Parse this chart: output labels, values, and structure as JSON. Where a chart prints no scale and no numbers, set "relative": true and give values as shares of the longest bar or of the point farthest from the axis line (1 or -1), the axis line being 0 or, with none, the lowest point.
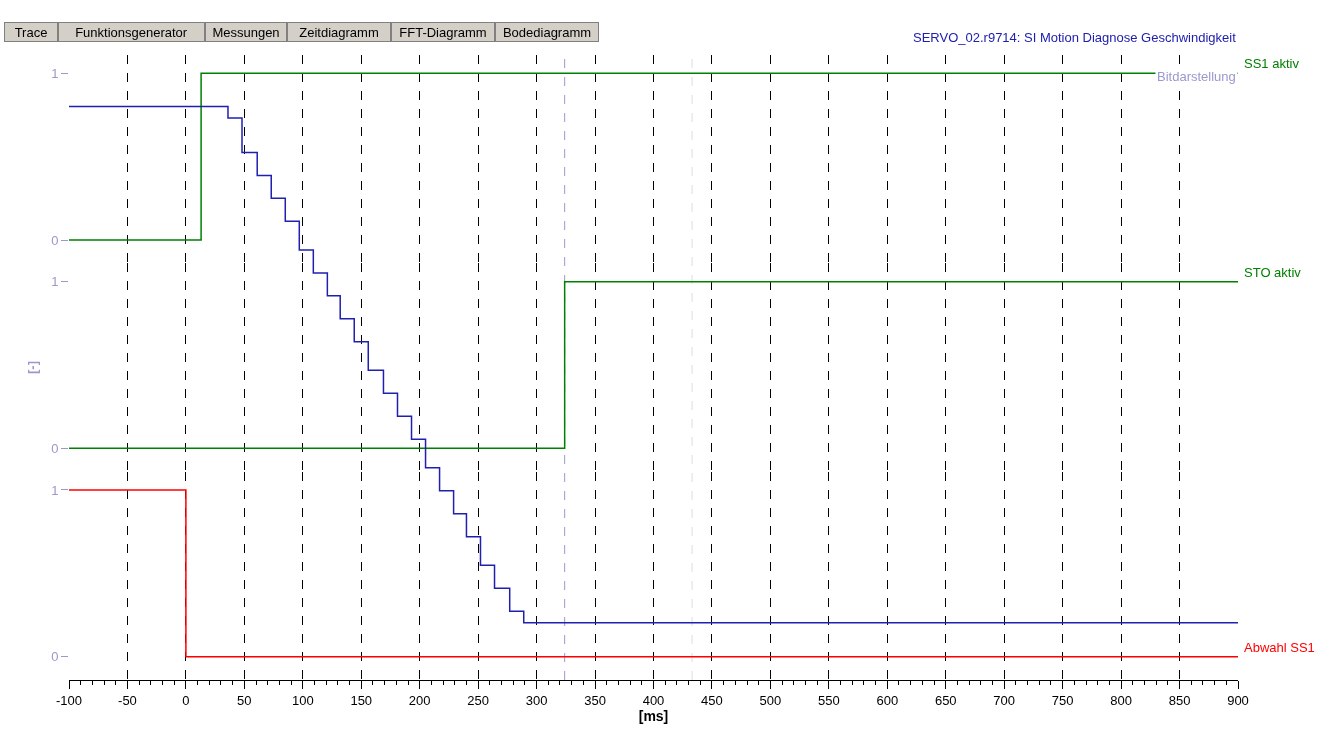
{
  "chart_data": [
    {
      "type": "step",
      "xlim": [
        -100,
        900
      ],
      "xticks": [
        -100,
        -50,
        0,
        50,
        100,
        150,
        200,
        250,
        300,
        350,
        400,
        450,
        500,
        550,
        600,
        650,
        700,
        750,
        800,
        850,
        900
      ],
      "ylim": [
        -0.14,
        1.11
      ],
      "yticks": [
        0,
        1
      ],
      "grid": "x",
      "tick_labels": "y",
      "line_style": "solid",
      "series": [
        {
          "name": "SS1 aktiv",
          "color": "#008000",
          "x": [
            -100,
            13,
            900
          ],
          "values": [
            0,
            1,
            1
          ]
        }
      ],
      "annotations": [
        "Trace",
        "Funktionsgenerator",
        "Messungen",
        "Zeitdiagramm",
        "FFT-Diagramm",
        "Bodediagramm"
      ]
    },
    {
      "type": "step",
      "ylabel": "[-]",
      "xlim": [
        -100,
        900
      ],
      "xticks": [
        -100,
        -50,
        0,
        50,
        100,
        150,
        200,
        250,
        300,
        350,
        400,
        450,
        500,
        550,
        600,
        650,
        700,
        750,
        800,
        850,
        900
      ],
      "ylim": [
        -0.14,
        1.11
      ],
      "yticks": [
        0,
        1
      ],
      "grid": "x",
      "tick_labels": "y",
      "line_style": "solid",
      "series": [
        {
          "name": "STO aktiv",
          "color": "#008000",
          "x": [
            -100,
            324,
            900
          ],
          "values": [
            0,
            1,
            1
          ]
        }
      ]
    },
    {
      "type": "step",
      "xlabel": "[ms]",
      "xlim": [
        -100,
        900
      ],
      "xticks": [
        -100,
        -50,
        0,
        50,
        100,
        150,
        200,
        250,
        300,
        350,
        400,
        450,
        500,
        550,
        600,
        650,
        700,
        750,
        800,
        850,
        900
      ],
      "ylim": [
        -0.14,
        1.11
      ],
      "yticks": [
        0,
        1
      ],
      "grid": "x",
      "line_style": "solid",
      "series": [
        {
          "name": "Abwahl SS1",
          "color": "#ff0000",
          "x": [
            -100,
            0,
            900
          ],
          "values": [
            1,
            0,
            0
          ]
        }
      ]
    },
    {
      "type": "step",
      "relative": true,
      "xlim": [
        -100,
        900
      ],
      "tick_labels": false,
      "line_style": "solid",
      "series": [
        {
          "name": "SERVO_02.r9714: SI Motion Diagnose Geschwindigkeit",
          "color": "#2020b0",
          "x": [
            -100,
            36,
            48,
            61,
            73,
            85,
            97,
            109,
            121,
            132,
            144,
            156,
            169,
            181,
            193,
            205,
            217,
            229,
            240,
            252,
            264,
            277,
            289,
            300,
            900
          ],
          "values": [
            1,
            0.98,
            0.92,
            0.88,
            0.84,
            0.8,
            0.75,
            0.71,
            0.67,
            0.63,
            0.59,
            0.54,
            0.5,
            0.46,
            0.42,
            0.37,
            0.33,
            0.29,
            0.25,
            0.2,
            0.16,
            0.12,
            0.1,
            0.1,
            0.1
          ]
        }
      ],
      "ref_lines": [
        {
          "axis": "x",
          "value": 324,
          "color": "#9999cc",
          "line_style": "dashed"
        },
        {
          "axis": "x",
          "value": 433,
          "color": "#dddddd",
          "line_style": "dashed"
        }
      ],
      "annotations": [
        "Bitdarstellung"
      ]
    }
  ]
}
